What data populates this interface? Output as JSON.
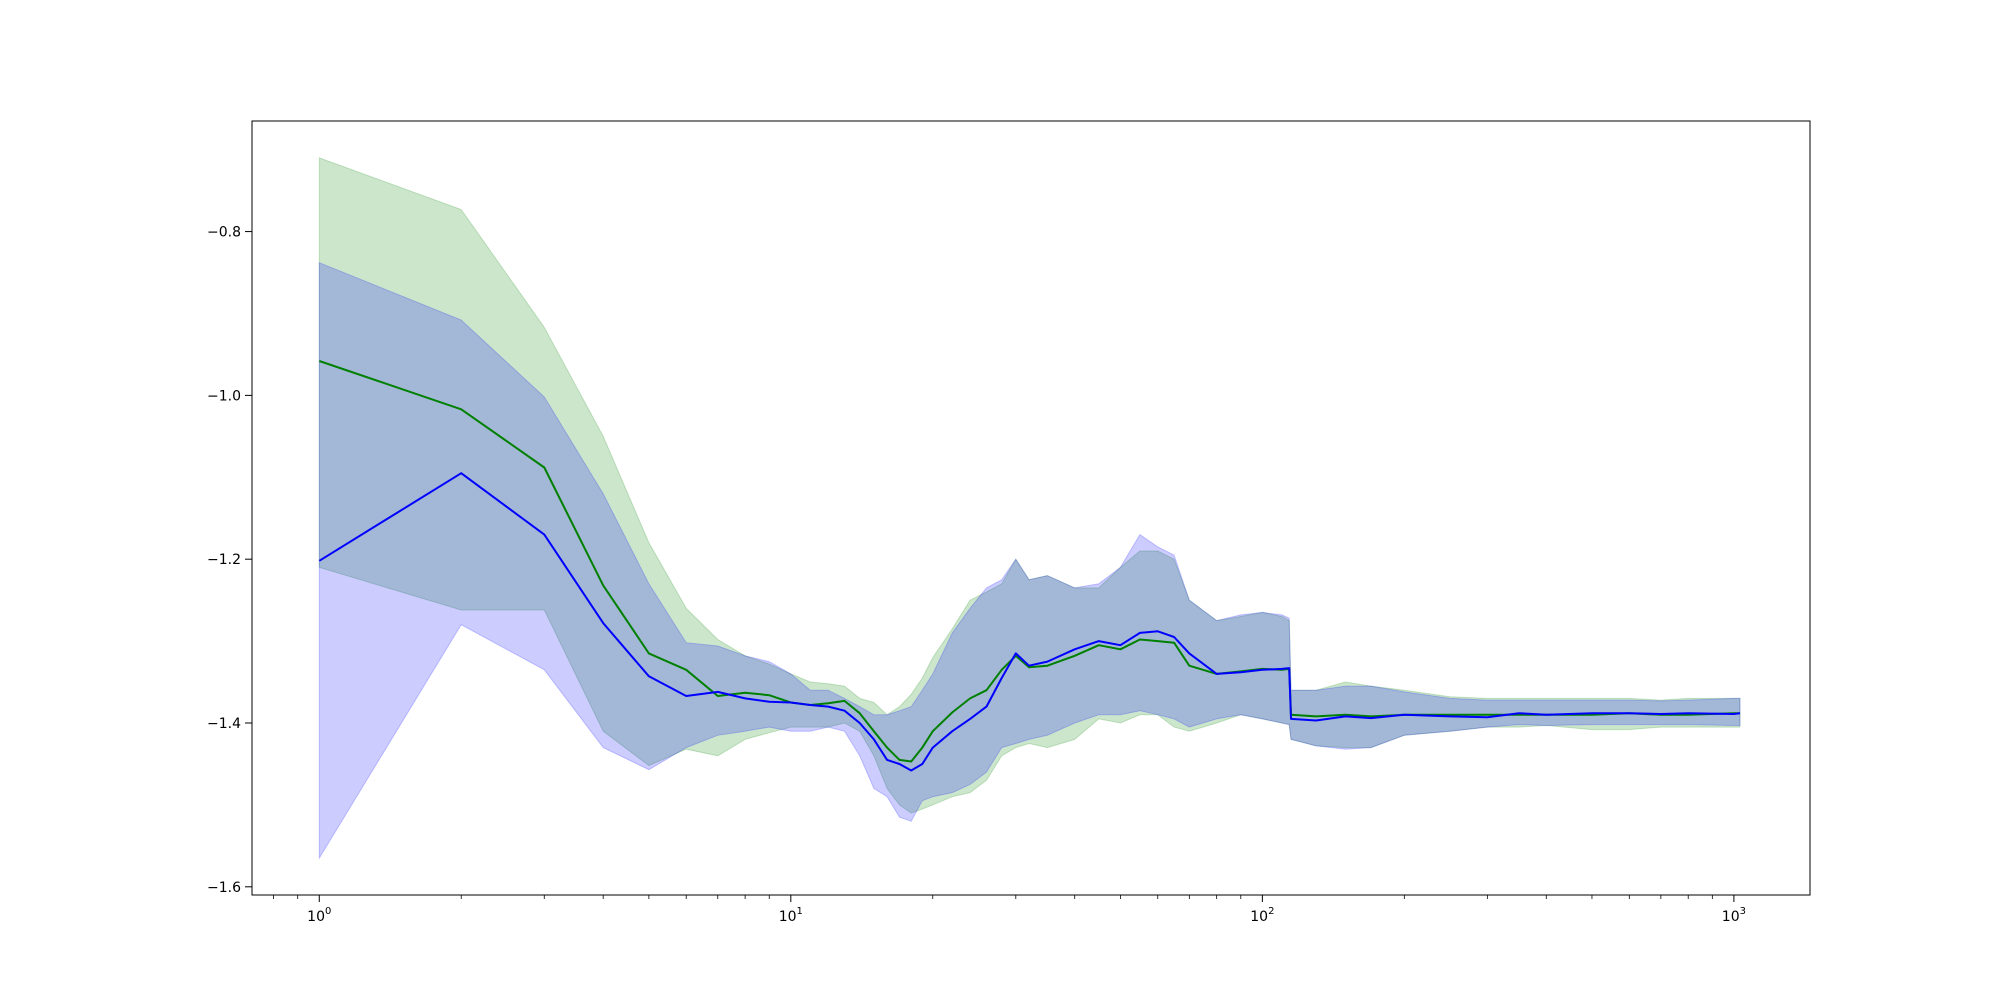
{
  "chart_data": {
    "type": "line",
    "title": "",
    "xlabel": "",
    "ylabel": "",
    "xscale": "log",
    "xlim": [
      0.72,
      1450
    ],
    "ylim": [
      -1.61,
      -0.665
    ],
    "grid": false,
    "legend": "none",
    "x_ticks": [
      {
        "base": "10",
        "exp": "0",
        "value": 1
      },
      {
        "base": "10",
        "exp": "1",
        "value": 10
      },
      {
        "base": "10",
        "exp": "2",
        "value": 100
      },
      {
        "base": "10",
        "exp": "3",
        "value": 1000
      }
    ],
    "y_ticks": [
      {
        "label": "−0.8",
        "value": -0.8
      },
      {
        "label": "−1.0",
        "value": -1.0
      },
      {
        "label": "−1.2",
        "value": -1.2
      },
      {
        "label": "−1.4",
        "value": -1.4
      },
      {
        "label": "−1.6",
        "value": -1.6
      }
    ],
    "series": [
      {
        "color": "#008000",
        "band_color": "#008000",
        "x": [
          1,
          2,
          3,
          4,
          5,
          6,
          7,
          8,
          9,
          10,
          11,
          12,
          13,
          14,
          15,
          16,
          17,
          18,
          19,
          20,
          22,
          24,
          26,
          28,
          30,
          32,
          35,
          40,
          45,
          50,
          55,
          60,
          65,
          70,
          80,
          90,
          100,
          110,
          114,
          115,
          130,
          150,
          170,
          200,
          250,
          300,
          350,
          400,
          500,
          600,
          700,
          800,
          1000,
          1030
        ],
        "mean": [
          -0.958,
          -1.017,
          -1.088,
          -1.232,
          -1.315,
          -1.335,
          -1.367,
          -1.363,
          -1.366,
          -1.375,
          -1.378,
          -1.376,
          -1.373,
          -1.388,
          -1.41,
          -1.43,
          -1.445,
          -1.447,
          -1.43,
          -1.41,
          -1.387,
          -1.37,
          -1.36,
          -1.335,
          -1.318,
          -1.332,
          -1.33,
          -1.318,
          -1.305,
          -1.31,
          -1.298,
          -1.3,
          -1.302,
          -1.33,
          -1.34,
          -1.337,
          -1.334,
          -1.335,
          -1.334,
          -1.39,
          -1.392,
          -1.39,
          -1.392,
          -1.39,
          -1.39,
          -1.39,
          -1.39,
          -1.39,
          -1.39,
          -1.388,
          -1.39,
          -1.39,
          -1.388,
          -1.388
        ],
        "upper": [
          -0.71,
          -0.773,
          -0.917,
          -1.05,
          -1.18,
          -1.26,
          -1.298,
          -1.318,
          -1.328,
          -1.34,
          -1.35,
          -1.352,
          -1.355,
          -1.37,
          -1.375,
          -1.39,
          -1.38,
          -1.365,
          -1.345,
          -1.32,
          -1.285,
          -1.25,
          -1.24,
          -1.23,
          -1.2,
          -1.225,
          -1.22,
          -1.235,
          -1.235,
          -1.21,
          -1.19,
          -1.19,
          -1.2,
          -1.25,
          -1.275,
          -1.27,
          -1.265,
          -1.27,
          -1.275,
          -1.36,
          -1.36,
          -1.35,
          -1.355,
          -1.36,
          -1.368,
          -1.37,
          -1.37,
          -1.37,
          -1.37,
          -1.37,
          -1.372,
          -1.37,
          -1.37,
          -1.37
        ],
        "lower": [
          -1.21,
          -1.262,
          -1.262,
          -1.41,
          -1.452,
          -1.432,
          -1.44,
          -1.42,
          -1.412,
          -1.405,
          -1.405,
          -1.405,
          -1.4,
          -1.41,
          -1.44,
          -1.48,
          -1.5,
          -1.51,
          -1.505,
          -1.5,
          -1.49,
          -1.485,
          -1.47,
          -1.44,
          -1.43,
          -1.425,
          -1.43,
          -1.42,
          -1.395,
          -1.4,
          -1.39,
          -1.39,
          -1.405,
          -1.41,
          -1.4,
          -1.39,
          -1.395,
          -1.4,
          -1.402,
          -1.42,
          -1.428,
          -1.43,
          -1.43,
          -1.415,
          -1.41,
          -1.405,
          -1.405,
          -1.403,
          -1.408,
          -1.408,
          -1.405,
          -1.405,
          -1.405,
          -1.405
        ]
      },
      {
        "color": "#0000ff",
        "band_color": "#0000ff",
        "x": [
          1,
          2,
          3,
          4,
          5,
          6,
          7,
          8,
          9,
          10,
          11,
          12,
          13,
          14,
          15,
          16,
          17,
          18,
          19,
          20,
          22,
          24,
          26,
          28,
          30,
          32,
          35,
          40,
          45,
          50,
          55,
          60,
          65,
          70,
          80,
          90,
          100,
          110,
          114,
          115,
          130,
          150,
          170,
          200,
          250,
          300,
          350,
          400,
          500,
          600,
          700,
          800,
          1000,
          1030
        ],
        "mean": [
          -1.202,
          -1.095,
          -1.17,
          -1.278,
          -1.343,
          -1.367,
          -1.362,
          -1.37,
          -1.374,
          -1.375,
          -1.378,
          -1.38,
          -1.385,
          -1.4,
          -1.42,
          -1.445,
          -1.45,
          -1.458,
          -1.45,
          -1.43,
          -1.41,
          -1.395,
          -1.38,
          -1.345,
          -1.315,
          -1.33,
          -1.325,
          -1.31,
          -1.3,
          -1.305,
          -1.29,
          -1.288,
          -1.295,
          -1.315,
          -1.34,
          -1.338,
          -1.335,
          -1.334,
          -1.333,
          -1.395,
          -1.397,
          -1.392,
          -1.394,
          -1.39,
          -1.392,
          -1.393,
          -1.388,
          -1.39,
          -1.388,
          -1.388,
          -1.389,
          -1.388,
          -1.389,
          -1.388
        ],
        "upper": [
          -0.838,
          -0.908,
          -1.002,
          -1.12,
          -1.23,
          -1.302,
          -1.306,
          -1.318,
          -1.325,
          -1.34,
          -1.36,
          -1.36,
          -1.37,
          -1.38,
          -1.39,
          -1.39,
          -1.385,
          -1.38,
          -1.36,
          -1.34,
          -1.29,
          -1.26,
          -1.235,
          -1.225,
          -1.2,
          -1.225,
          -1.22,
          -1.235,
          -1.23,
          -1.21,
          -1.17,
          -1.185,
          -1.195,
          -1.25,
          -1.275,
          -1.268,
          -1.265,
          -1.268,
          -1.272,
          -1.36,
          -1.36,
          -1.355,
          -1.355,
          -1.362,
          -1.37,
          -1.372,
          -1.372,
          -1.372,
          -1.372,
          -1.372,
          -1.373,
          -1.372,
          -1.37,
          -1.37
        ],
        "lower": [
          -1.565,
          -1.28,
          -1.335,
          -1.43,
          -1.457,
          -1.43,
          -1.415,
          -1.41,
          -1.405,
          -1.41,
          -1.41,
          -1.405,
          -1.41,
          -1.44,
          -1.48,
          -1.49,
          -1.515,
          -1.52,
          -1.495,
          -1.49,
          -1.485,
          -1.475,
          -1.46,
          -1.43,
          -1.425,
          -1.42,
          -1.415,
          -1.4,
          -1.39,
          -1.39,
          -1.385,
          -1.39,
          -1.395,
          -1.405,
          -1.395,
          -1.39,
          -1.395,
          -1.4,
          -1.402,
          -1.42,
          -1.428,
          -1.432,
          -1.43,
          -1.415,
          -1.41,
          -1.405,
          -1.402,
          -1.403,
          -1.402,
          -1.402,
          -1.402,
          -1.402,
          -1.403,
          -1.403
        ]
      }
    ]
  }
}
